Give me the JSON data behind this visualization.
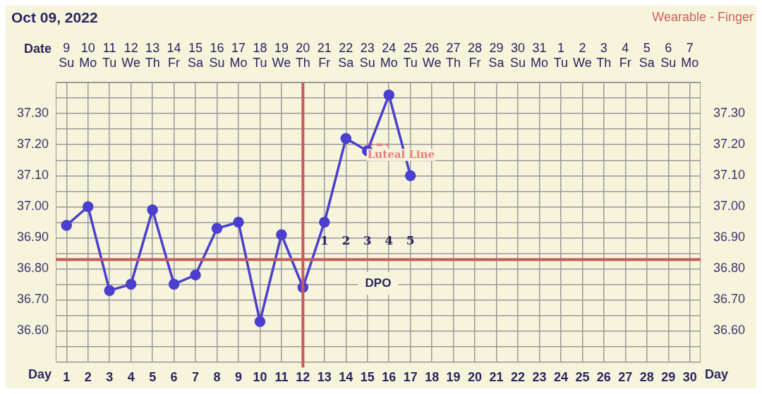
{
  "chart_data": {
    "type": "line",
    "title": "Oct 09, 2022",
    "xlabel": "Date",
    "x2label": "Day",
    "x": [
      "2022-10-09",
      "2022-10-10",
      "2022-10-11",
      "2022-10-12",
      "2022-10-13",
      "2022-10-14",
      "2022-10-15",
      "2022-10-16",
      "2022-10-17",
      "2022-10-18",
      "2022-10-19",
      "2022-10-20",
      "2022-10-21",
      "2022-10-22",
      "2022-10-23",
      "2022-10-24",
      "2022-10-25"
    ],
    "series": [
      {
        "color": "#4a3fcf",
        "values": [
          36.94,
          37.0,
          36.73,
          36.75,
          36.99,
          36.75,
          36.78,
          36.93,
          36.95,
          36.63,
          36.91,
          36.74,
          36.95,
          37.22,
          37.18,
          37.36,
          37.1
        ],
        "marker": "circle",
        "line_style": "solid"
      },
      {
        "name": "Luteal Line",
        "type": "line",
        "x": [
          "2022-10-23",
          "2022-10-24"
        ],
        "values": [
          37.2,
          37.2
        ],
        "color": "#e87c7c",
        "marker": "none",
        "line_style": "dashed"
      }
    ],
    "xlim": [
      "2022-10-08T12:00",
      "2022-11-07T12:00"
    ],
    "xticks": [
      {
        "value": "2022-10-09",
        "label": "9\nSu"
      },
      {
        "value": "2022-10-10",
        "label": "10\nMo"
      },
      {
        "value": "2022-10-11",
        "label": "11\nTu"
      },
      {
        "value": "2022-10-12",
        "label": "12\nWe"
      },
      {
        "value": "2022-10-13",
        "label": "13\nTh"
      },
      {
        "value": "2022-10-14",
        "label": "14\nFr"
      },
      {
        "value": "2022-10-15",
        "label": "15\nSa"
      },
      {
        "value": "2022-10-16",
        "label": "16\nSu"
      },
      {
        "value": "2022-10-17",
        "label": "17\nMo"
      },
      {
        "value": "2022-10-18",
        "label": "18\nTu"
      },
      {
        "value": "2022-10-19",
        "label": "19\nWe"
      },
      {
        "value": "2022-10-20",
        "label": "20\nTh"
      },
      {
        "value": "2022-10-21",
        "label": "21\nFr"
      },
      {
        "value": "2022-10-22",
        "label": "22\nSa"
      },
      {
        "value": "2022-10-23",
        "label": "23\nSu"
      },
      {
        "value": "2022-10-24",
        "label": "24\nMo"
      },
      {
        "value": "2022-10-25",
        "label": "25\nTu"
      },
      {
        "value": "2022-10-26",
        "label": "26\nWe"
      },
      {
        "value": "2022-10-27",
        "label": "27\nTh"
      },
      {
        "value": "2022-10-28",
        "label": "28\nFr"
      },
      {
        "value": "2022-10-29",
        "label": "29\nSa"
      },
      {
        "value": "2022-10-30",
        "label": "30\nSu"
      },
      {
        "value": "2022-10-31",
        "label": "31\nMo"
      },
      {
        "value": "2022-11-01",
        "label": "1\nTu"
      },
      {
        "value": "2022-11-02",
        "label": "2\nWe"
      },
      {
        "value": "2022-11-03",
        "label": "3\nTh"
      },
      {
        "value": "2022-11-04",
        "label": "4\nFr"
      },
      {
        "value": "2022-11-05",
        "label": "5\nSa"
      },
      {
        "value": "2022-11-06",
        "label": "6\nSu"
      },
      {
        "value": "2022-11-07",
        "label": "7\nMo"
      }
    ],
    "x2lim": [
      0.5,
      30.5
    ],
    "x2ticks": [
      1,
      2,
      3,
      4,
      5,
      6,
      7,
      8,
      9,
      10,
      11,
      12,
      13,
      14,
      15,
      16,
      17,
      18,
      19,
      20,
      21,
      22,
      23,
      24,
      25,
      26,
      27,
      28,
      29,
      30
    ],
    "ylim": [
      36.5,
      37.4
    ],
    "yticks": [
      {
        "value": 36.5,
        "label": null
      },
      {
        "value": 36.55,
        "label": null
      },
      {
        "value": 36.6,
        "label": "36.60"
      },
      {
        "value": 36.65,
        "label": null
      },
      {
        "value": 36.7,
        "label": "36.70"
      },
      {
        "value": 36.75,
        "label": null
      },
      {
        "value": 36.8,
        "label": "36.80"
      },
      {
        "value": 36.85,
        "label": null
      },
      {
        "value": 36.9,
        "label": "36.90"
      },
      {
        "value": 36.95,
        "label": null
      },
      {
        "value": 37.0,
        "label": "37.00"
      },
      {
        "value": 37.05,
        "label": null
      },
      {
        "value": 37.1,
        "label": "37.10"
      },
      {
        "value": 37.15,
        "label": null
      },
      {
        "value": 37.2,
        "label": "37.20"
      },
      {
        "value": 37.25,
        "label": null
      },
      {
        "value": 37.3,
        "label": "37.30"
      },
      {
        "value": 37.35,
        "label": null
      },
      {
        "value": 37.4,
        "label": null
      }
    ],
    "y2lim": [
      36.5,
      37.4
    ],
    "y2ticks": [
      {
        "value": 36.6,
        "label": "36.60"
      },
      {
        "value": 36.7,
        "label": "36.70"
      },
      {
        "value": 36.8,
        "label": "36.80"
      },
      {
        "value": 36.9,
        "label": "36.90"
      },
      {
        "value": 37.0,
        "label": "37.00"
      },
      {
        "value": 37.1,
        "label": "37.10"
      },
      {
        "value": 37.2,
        "label": "37.20"
      },
      {
        "value": 37.3,
        "label": "37.30"
      }
    ],
    "grid": true,
    "legend": false,
    "ref_lines": [
      {
        "axis": "y",
        "value": 36.83,
        "color": "#c85a5a"
      },
      {
        "axis": "x",
        "value": "2022-10-20",
        "color": "#c85a5a"
      }
    ],
    "annotations": [
      "Wearable - Finger",
      "1",
      "2",
      "3",
      "4",
      "5",
      "DPO"
    ]
  }
}
